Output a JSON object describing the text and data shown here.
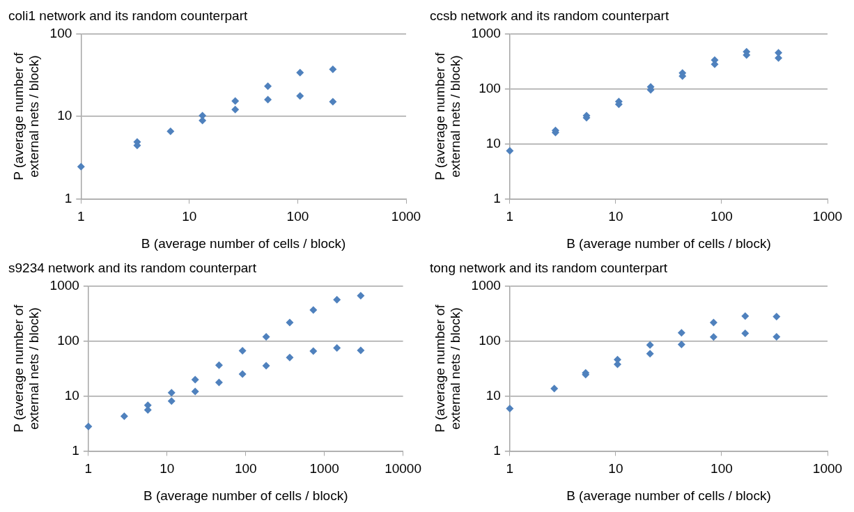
{
  "chart_data": [
    {
      "type": "scatter",
      "title": "coli1 network and its random counterpart",
      "xlabel": "B (average number of cells / block)",
      "ylabel": "P (average number of external nets / block)",
      "log": "xy",
      "xlim": [
        1,
        1000
      ],
      "xticks": [
        1,
        10,
        100,
        1000
      ],
      "ylim": [
        1,
        100
      ],
      "yticks": [
        1,
        10,
        100
      ],
      "grid": "y",
      "marker": "diamond",
      "legend": false,
      "series": [
        {
          "color": "#4f81bd",
          "x": [
            1,
            3.3,
            3.3,
            6.7,
            13.2,
            13.2,
            26.5,
            26.5,
            53,
            53,
            105,
            105,
            211,
            211
          ],
          "values": [
            2.45,
            4.9,
            4.45,
            6.6,
            10.2,
            8.9,
            15.4,
            12.1,
            23.2,
            16,
            34,
            17.7,
            37.3,
            15.1
          ]
        }
      ]
    },
    {
      "type": "scatter",
      "title": "ccsb network and its random counterpart",
      "xlabel": "B (average number of cells / block)",
      "ylabel": "P (average number of external nets / block)",
      "log": "xy",
      "xlim": [
        1,
        1000
      ],
      "xticks": [
        1,
        10,
        100,
        1000
      ],
      "ylim": [
        1,
        1000
      ],
      "yticks": [
        1,
        10,
        100,
        1000
      ],
      "grid": "y",
      "marker": "diamond",
      "legend": false,
      "series": [
        {
          "color": "#4f81bd",
          "x": [
            1,
            2.7,
            2.7,
            5.3,
            5.3,
            10.7,
            10.7,
            21.4,
            21.4,
            42.7,
            42.7,
            86,
            86,
            172,
            172,
            344,
            344
          ],
          "values": [
            7.5,
            17.5,
            16.1,
            32.6,
            30,
            59,
            52.5,
            109,
            96,
            195,
            171,
            334,
            282,
            477,
            414,
            455,
            367
          ]
        }
      ]
    },
    {
      "type": "scatter",
      "title": "s9234 network and its random counterpart",
      "xlabel": "B (average number of cells / block)",
      "ylabel": "P (average number of external nets / block)",
      "log": "xy",
      "xlim": [
        1,
        10000
      ],
      "xticks": [
        1,
        10,
        100,
        1000,
        10000
      ],
      "ylim": [
        1,
        1000
      ],
      "yticks": [
        1,
        10,
        100,
        1000
      ],
      "grid": "y",
      "marker": "diamond",
      "legend": false,
      "series": [
        {
          "color": "#4f81bd",
          "x": [
            1,
            2.86,
            5.7,
            5.7,
            11.4,
            11.4,
            22.8,
            22.8,
            45.8,
            45.8,
            91,
            91,
            182,
            182,
            363,
            363,
            724,
            724,
            1445,
            1445,
            2900,
            2900
          ],
          "values": [
            2.8,
            4.3,
            6.8,
            5.6,
            11.5,
            8.1,
            19.9,
            12.1,
            36.5,
            17.7,
            67,
            25.2,
            120,
            35.6,
            218,
            50.4,
            368,
            66,
            565,
            75,
            668,
            68
          ]
        }
      ]
    },
    {
      "type": "scatter",
      "title": "tong network and its random counterpart",
      "xlabel": "B (average number of cells / block)",
      "ylabel": "P (average number of external nets / block)",
      "log": "xy",
      "xlim": [
        1,
        1000
      ],
      "xticks": [
        1,
        10,
        100,
        1000
      ],
      "ylim": [
        1,
        1000
      ],
      "yticks": [
        1,
        10,
        100,
        1000
      ],
      "grid": "y",
      "marker": "diamond",
      "legend": false,
      "series": [
        {
          "color": "#4f81bd",
          "x": [
            1,
            2.63,
            5.2,
            5.2,
            10.4,
            10.4,
            21.1,
            21.1,
            41.8,
            41.8,
            84,
            84,
            167,
            167,
            330,
            330
          ],
          "values": [
            5.9,
            13.7,
            26.5,
            24.6,
            46,
            37.8,
            85,
            59,
            142,
            87,
            218,
            119,
            286,
            139,
            280,
            120
          ]
        }
      ]
    }
  ]
}
